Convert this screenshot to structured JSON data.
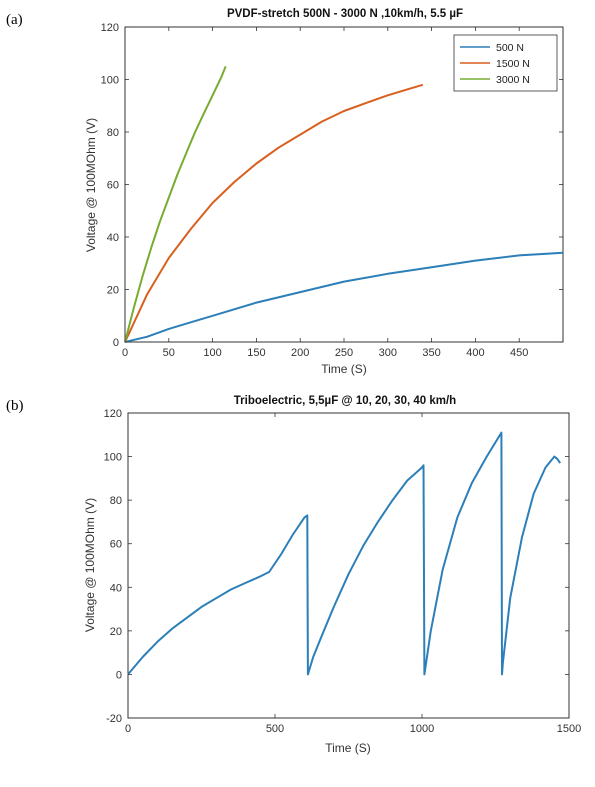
{
  "panels": {
    "a": "(a)",
    "b": "(b)"
  },
  "chart_data": [
    {
      "type": "line",
      "title": "PVDF-stretch 500N - 3000 N ,10km/h, 5.5 µF",
      "xlabel": "Time (S)",
      "ylabel": "Voltage @ 100MOhm (V)",
      "xlim": [
        0,
        500
      ],
      "ylim": [
        0,
        120
      ],
      "xticks": [
        0,
        50,
        100,
        150,
        200,
        250,
        300,
        350,
        400,
        450
      ],
      "yticks": [
        0,
        20,
        40,
        60,
        80,
        100,
        120
      ],
      "legend_position": "top-right",
      "series": [
        {
          "name": "500 N",
          "color": "#2c7fb8",
          "x": [
            0,
            25,
            50,
            75,
            100,
            150,
            200,
            250,
            300,
            350,
            400,
            450,
            500
          ],
          "y": [
            0,
            2,
            5,
            7.5,
            10,
            15,
            19,
            23,
            26,
            28.5,
            31,
            33,
            34
          ]
        },
        {
          "name": "1500 N",
          "color": "#d95f1e",
          "x": [
            0,
            25,
            50,
            75,
            100,
            125,
            150,
            175,
            200,
            225,
            250,
            275,
            300,
            325,
            340
          ],
          "y": [
            0,
            18,
            32,
            43,
            53,
            61,
            68,
            74,
            79,
            84,
            88,
            91,
            94,
            96.5,
            98
          ]
        },
        {
          "name": "3000 N",
          "color": "#77ac30",
          "x": [
            0,
            10,
            20,
            30,
            40,
            50,
            60,
            70,
            80,
            90,
            100,
            110,
            115
          ],
          "y": [
            0,
            13,
            25,
            36,
            46,
            55,
            64,
            72,
            80,
            87,
            94,
            101,
            105
          ]
        }
      ]
    },
    {
      "type": "line",
      "title": "Triboelectric, 5,5µF @ 10, 20, 30, 40 km/h",
      "xlabel": "Time (S)",
      "ylabel": "Voltage @ 100MOhm (V)",
      "xlim": [
        0,
        1500
      ],
      "ylim": [
        -20,
        120
      ],
      "xticks": [
        0,
        500,
        1000,
        1500
      ],
      "yticks": [
        -20,
        0,
        20,
        40,
        60,
        80,
        100,
        120
      ],
      "series": [
        {
          "color": "#2c7fb8",
          "x": [
            0,
            50,
            100,
            150,
            200,
            250,
            300,
            350,
            400,
            450,
            480,
            520,
            560,
            600,
            610,
            612,
            630,
            660,
            700,
            750,
            800,
            850,
            900,
            950,
            1000,
            1005,
            1008,
            1030,
            1070,
            1120,
            1170,
            1220,
            1270,
            1272,
            1275,
            1300,
            1340,
            1380,
            1420,
            1450,
            1460,
            1470
          ],
          "y": [
            0,
            8,
            15,
            21,
            26,
            31,
            35,
            39,
            42,
            45,
            47,
            55,
            64,
            72,
            73,
            0,
            8,
            18,
            31,
            46,
            59,
            70,
            80,
            89,
            95,
            96,
            0,
            20,
            48,
            72,
            88,
            100,
            111,
            0,
            5,
            35,
            63,
            83,
            95,
            100,
            99,
            97
          ]
        }
      ]
    }
  ]
}
